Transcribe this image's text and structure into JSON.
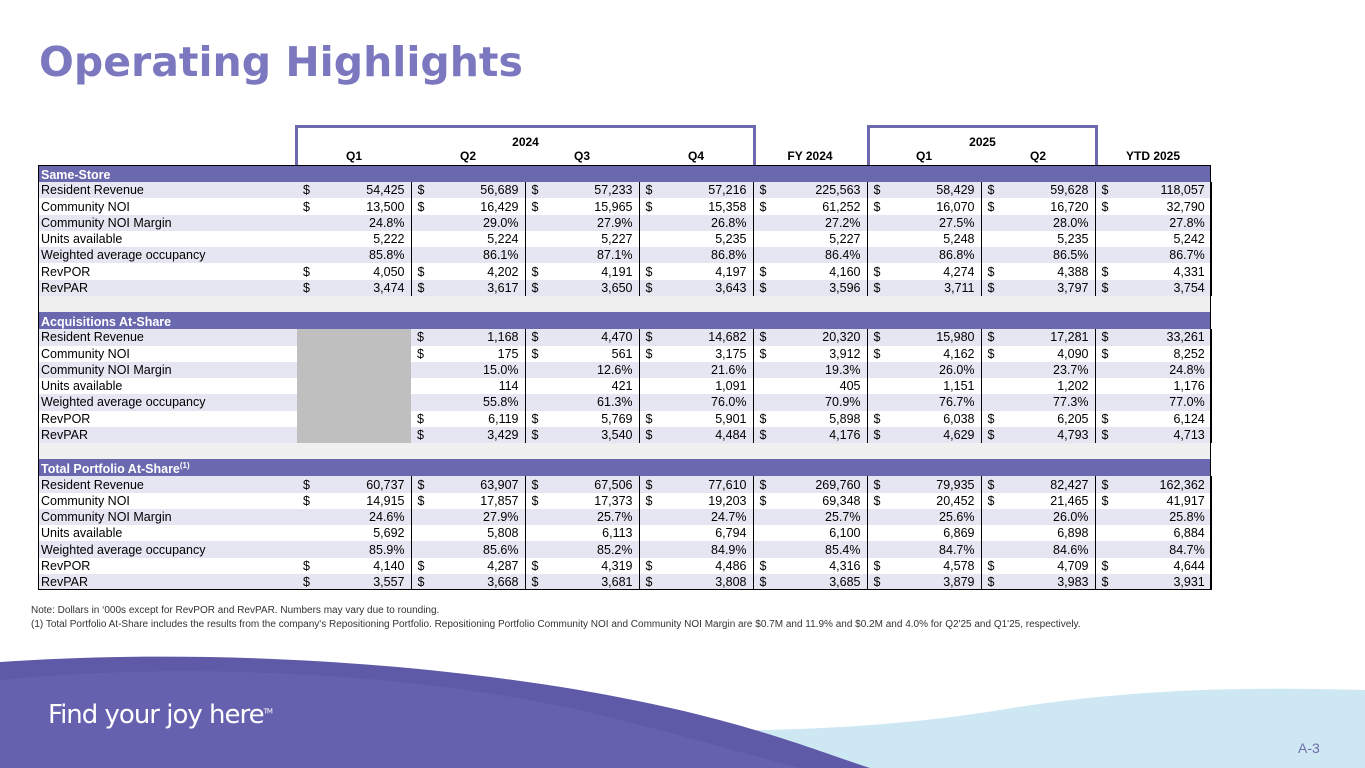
{
  "page": {
    "title": "Operating Highlights",
    "page_number": "A-3"
  },
  "years": {
    "y2024": "2024",
    "y2025": "2025"
  },
  "columns": [
    "Q1",
    "Q2",
    "Q3",
    "Q4",
    "FY 2024",
    "Q1",
    "Q2",
    "YTD 2025"
  ],
  "sections": [
    {
      "name": "Same-Store",
      "footnote": "",
      "rows": [
        {
          "label": "Resident Revenue",
          "type": "dollar",
          "values": [
            "54,425",
            "56,689",
            "57,233",
            "57,216",
            "225,563",
            "58,429",
            "59,628",
            "118,057"
          ]
        },
        {
          "label": "Community NOI",
          "type": "dollar",
          "values": [
            "13,500",
            "16,429",
            "15,965",
            "15,358",
            "61,252",
            "16,070",
            "16,720",
            "32,790"
          ]
        },
        {
          "label": "Community NOI Margin",
          "type": "pct",
          "values": [
            "24.8%",
            "29.0%",
            "27.9%",
            "26.8%",
            "27.2%",
            "27.5%",
            "28.0%",
            "27.8%"
          ]
        },
        {
          "label": "Units available",
          "type": "pct",
          "values": [
            "5,222",
            "5,224",
            "5,227",
            "5,235",
            "5,227",
            "5,248",
            "5,235",
            "5,242"
          ]
        },
        {
          "label": "Weighted average occupancy",
          "type": "pct",
          "values": [
            "85.8%",
            "86.1%",
            "87.1%",
            "86.8%",
            "86.4%",
            "86.8%",
            "86.5%",
            "86.7%"
          ]
        },
        {
          "label": "RevPOR",
          "type": "dollar",
          "values": [
            "4,050",
            "4,202",
            "4,191",
            "4,197",
            "4,160",
            "4,274",
            "4,388",
            "4,331"
          ]
        },
        {
          "label": "RevPAR",
          "type": "dollar",
          "values": [
            "3,474",
            "3,617",
            "3,650",
            "3,643",
            "3,596",
            "3,711",
            "3,797",
            "3,754"
          ]
        }
      ]
    },
    {
      "name": "Acquisitions At-Share",
      "footnote": "",
      "rows": [
        {
          "label": "Resident Revenue",
          "type": "dollar",
          "values": [
            "",
            "1,168",
            "4,470",
            "14,682",
            "20,320",
            "15,980",
            "17,281",
            "33,261"
          ]
        },
        {
          "label": "Community NOI",
          "type": "dollar",
          "values": [
            "",
            "175",
            "561",
            "3,175",
            "3,912",
            "4,162",
            "4,090",
            "8,252"
          ]
        },
        {
          "label": "Community NOI Margin",
          "type": "pct",
          "values": [
            "",
            "15.0%",
            "12.6%",
            "21.6%",
            "19.3%",
            "26.0%",
            "23.7%",
            "24.8%"
          ]
        },
        {
          "label": "Units available",
          "type": "pct",
          "values": [
            "",
            "114",
            "421",
            "1,091",
            "405",
            "1,151",
            "1,202",
            "1,176"
          ]
        },
        {
          "label": "Weighted average occupancy",
          "type": "pct",
          "values": [
            "",
            "55.8%",
            "61.3%",
            "76.0%",
            "70.9%",
            "76.7%",
            "77.3%",
            "77.0%"
          ]
        },
        {
          "label": "RevPOR",
          "type": "dollar",
          "values": [
            "",
            "6,119",
            "5,769",
            "5,901",
            "5,898",
            "6,038",
            "6,205",
            "6,124"
          ]
        },
        {
          "label": "RevPAR",
          "type": "dollar",
          "values": [
            "",
            "3,429",
            "3,540",
            "4,484",
            "4,176",
            "4,629",
            "4,793",
            "4,713"
          ]
        }
      ]
    },
    {
      "name": "Total Portfolio At-Share",
      "footnote": "(1)",
      "rows": [
        {
          "label": "Resident Revenue",
          "type": "dollar",
          "values": [
            "60,737",
            "63,907",
            "67,506",
            "77,610",
            "269,760",
            "79,935",
            "82,427",
            "162,362"
          ]
        },
        {
          "label": "Community NOI",
          "type": "dollar",
          "values": [
            "14,915",
            "17,857",
            "17,373",
            "19,203",
            "69,348",
            "20,452",
            "21,465",
            "41,917"
          ]
        },
        {
          "label": "Community NOI Margin",
          "type": "pct",
          "values": [
            "24.6%",
            "27.9%",
            "25.7%",
            "24.7%",
            "25.7%",
            "25.6%",
            "26.0%",
            "25.8%"
          ]
        },
        {
          "label": "Units available",
          "type": "pct",
          "values": [
            "5,692",
            "5,808",
            "6,113",
            "6,794",
            "6,100",
            "6,869",
            "6,898",
            "6,884"
          ]
        },
        {
          "label": "Weighted average occupancy",
          "type": "pct",
          "values": [
            "85.9%",
            "85.6%",
            "85.2%",
            "84.9%",
            "85.4%",
            "84.7%",
            "84.6%",
            "84.7%"
          ]
        },
        {
          "label": "RevPOR",
          "type": "dollar",
          "values": [
            "4,140",
            "4,287",
            "4,319",
            "4,486",
            "4,316",
            "4,578",
            "4,709",
            "4,644"
          ]
        },
        {
          "label": "RevPAR",
          "type": "dollar",
          "values": [
            "3,557",
            "3,668",
            "3,681",
            "3,808",
            "3,685",
            "3,879",
            "3,983",
            "3,931"
          ]
        }
      ]
    }
  ],
  "currency_symbol": "$",
  "notes": {
    "line1": "Note: Dollars in ‘000s except for RevPOR and RevPAR.  Numbers may vary due to rounding.",
    "line2": "(1) Total Portfolio At-Share includes the results from the company's Repositioning Portfolio.  Repositioning Portfolio Community NOI and Community NOI Margin are $0.7M and 11.9% and $0.2M and 4.0% for Q2'25 and Q1'25, respectively."
  },
  "footer": {
    "tagline": "Find your joy here",
    "tagline_mark": "TM"
  },
  "colors": {
    "accent": "#7b78c0",
    "section_band": "#6a68ae",
    "row_tint": "#e6e6f3",
    "wave_dark": "#5f5aa8",
    "wave_light": "#c9e6f2"
  }
}
